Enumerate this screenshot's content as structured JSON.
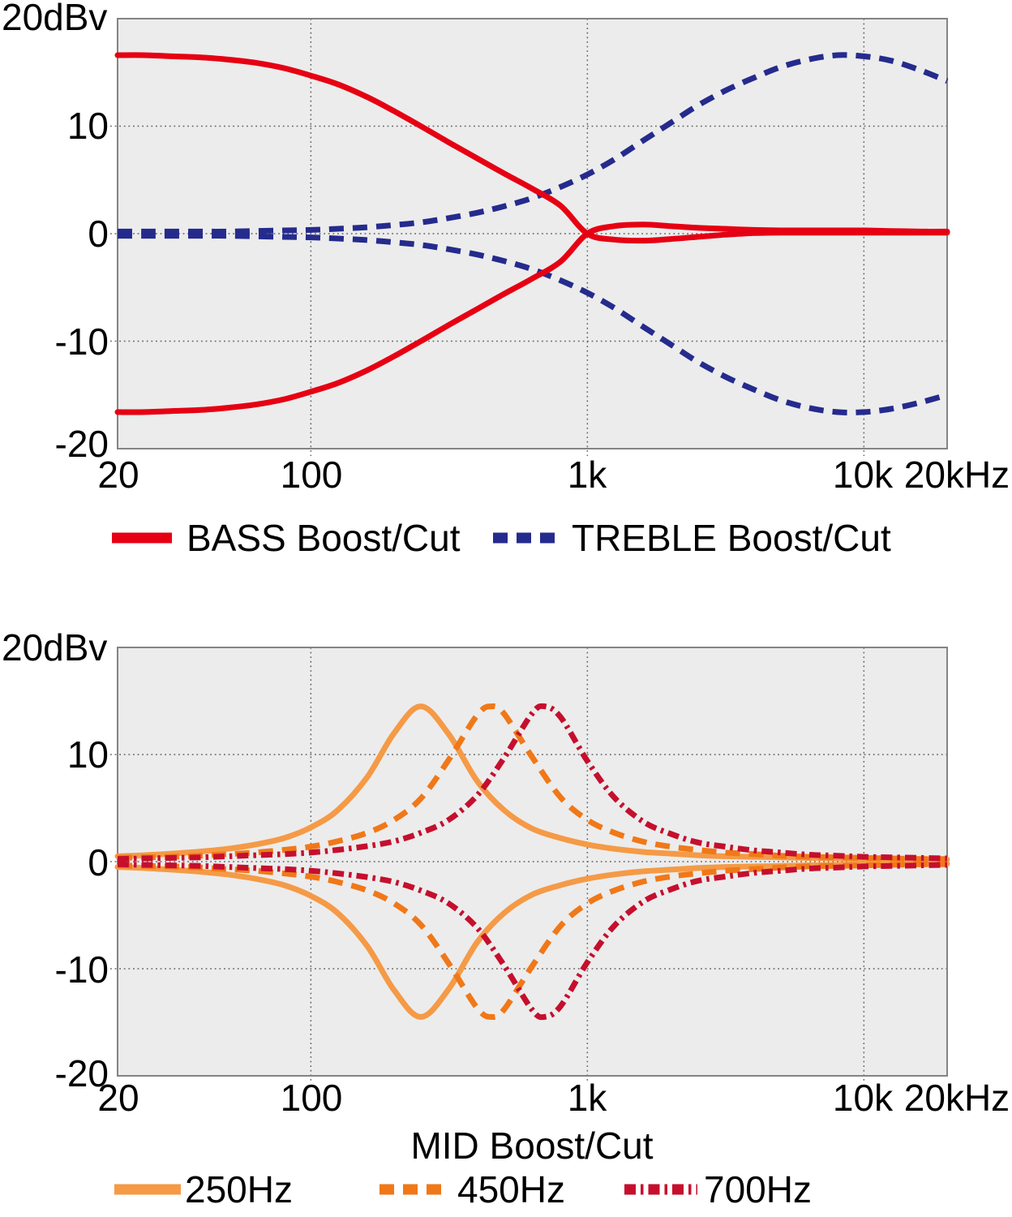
{
  "colors": {
    "page_bg": "#ffffff",
    "plot_bg": "#ececec",
    "grid": "#636363",
    "axis": "#848484",
    "text": "#000000",
    "bass_red": "#e60013",
    "treble_blue": "#252b8d",
    "mid250_orange": "#f59a46",
    "mid450_orange": "#f07818",
    "mid700_crimson": "#c50f2d"
  },
  "chart_data": [
    {
      "type": "line",
      "title": "",
      "unit_label": "20dBv",
      "xlabel": "",
      "ylabel": "",
      "x_scale": "log",
      "x_range": [
        20,
        20000
      ],
      "y_range": [
        -20,
        20
      ],
      "grid": {
        "x_values": [
          100,
          1000,
          10000
        ],
        "y_values": [
          10,
          0,
          -10
        ]
      },
      "x_ticks": [
        {
          "value": 20,
          "label": "20"
        },
        {
          "value": 100,
          "label": "100"
        },
        {
          "value": 1000,
          "label": "1k"
        },
        {
          "value": 10000,
          "label": "10k"
        },
        {
          "value": 20000,
          "label": "20kHz"
        }
      ],
      "y_ticks": [
        {
          "value": 10,
          "label": "10"
        },
        {
          "value": 0,
          "label": "0"
        },
        {
          "value": -10,
          "label": "-10"
        },
        {
          "value": -20,
          "label": "-20"
        }
      ],
      "legend_position": "bottom",
      "legend": [
        {
          "label": "BASS Boost/Cut",
          "color": "#e60013",
          "line_style": "solid"
        },
        {
          "label": "TREBLE Boost/Cut",
          "color": "#252b8d",
          "line_style": "dashed"
        }
      ],
      "series": [
        {
          "id": "treble-cut",
          "name": "TREBLE Cut",
          "color": "#252b8d",
          "line_style": "dashed",
          "x": [
            20,
            25,
            31.5,
            40,
            50,
            63,
            80,
            100,
            125,
            160,
            200,
            250,
            315,
            400,
            500,
            630,
            800,
            1000,
            1250,
            1600,
            2000,
            2500,
            3150,
            4000,
            5000,
            6300,
            8000,
            10000,
            12500,
            16000,
            20000
          ],
          "y": [
            -0.2,
            -0.2,
            -0.2,
            -0.2,
            -0.2,
            -0.25,
            -0.3,
            -0.35,
            -0.45,
            -0.6,
            -0.8,
            -1.05,
            -1.45,
            -1.95,
            -2.55,
            -3.3,
            -4.35,
            -5.5,
            -6.9,
            -8.7,
            -10.3,
            -11.9,
            -13.3,
            -14.5,
            -15.5,
            -16.2,
            -16.6,
            -16.6,
            -16.3,
            -15.7,
            -15.0
          ]
        },
        {
          "id": "treble-boost",
          "name": "TREBLE Boost",
          "color": "#252b8d",
          "line_style": "dashed",
          "x": [
            20,
            25,
            31.5,
            40,
            50,
            63,
            80,
            100,
            125,
            160,
            200,
            250,
            315,
            400,
            500,
            630,
            800,
            1000,
            1250,
            1600,
            2000,
            2500,
            3150,
            4000,
            5000,
            6300,
            8000,
            10000,
            12500,
            16000,
            20000
          ],
          "y": [
            0.2,
            0.2,
            0.2,
            0.2,
            0.2,
            0.25,
            0.3,
            0.35,
            0.45,
            0.6,
            0.8,
            1.05,
            1.45,
            1.95,
            2.55,
            3.3,
            4.35,
            5.5,
            6.9,
            8.7,
            10.3,
            11.9,
            13.3,
            14.5,
            15.5,
            16.2,
            16.6,
            16.5,
            16.1,
            15.2,
            14.2
          ]
        },
        {
          "id": "bass-cut",
          "name": "BASS Cut",
          "color": "#e60013",
          "line_style": "solid",
          "x": [
            20,
            25,
            31.5,
            40,
            50,
            63,
            80,
            100,
            125,
            160,
            200,
            250,
            315,
            400,
            500,
            630,
            800,
            1000,
            1250,
            1600,
            2000,
            2500,
            3150,
            4000,
            5000,
            6300,
            8000,
            10000,
            12500,
            16000,
            20000
          ],
          "y": [
            -16.6,
            -16.6,
            -16.5,
            -16.4,
            -16.2,
            -15.9,
            -15.4,
            -14.7,
            -13.9,
            -12.7,
            -11.4,
            -10.0,
            -8.5,
            -7.0,
            -5.6,
            -4.2,
            -2.6,
            0.0,
            0.7,
            0.85,
            0.7,
            0.55,
            0.45,
            0.35,
            0.3,
            0.3,
            0.3,
            0.3,
            0.25,
            0.2,
            0.2
          ]
        },
        {
          "id": "bass-boost",
          "name": "BASS Boost",
          "color": "#e60013",
          "line_style": "solid",
          "x": [
            20,
            25,
            31.5,
            40,
            50,
            63,
            80,
            100,
            125,
            160,
            200,
            250,
            315,
            400,
            500,
            630,
            800,
            1000,
            1250,
            1600,
            2000,
            2500,
            3150,
            4000,
            5000,
            6300,
            8000,
            10000,
            12500,
            16000,
            20000
          ],
          "y": [
            16.6,
            16.6,
            16.5,
            16.4,
            16.2,
            15.9,
            15.4,
            14.7,
            13.9,
            12.7,
            11.4,
            10.0,
            8.5,
            7.0,
            5.6,
            4.2,
            2.6,
            0.0,
            -0.55,
            -0.65,
            -0.5,
            -0.3,
            -0.1,
            0.05,
            0.1,
            0.1,
            0.1,
            0.1,
            0.1,
            0.1,
            0.1
          ]
        }
      ]
    },
    {
      "type": "line",
      "title": "",
      "unit_label": "20dBv",
      "xlabel": "MID Boost/Cut",
      "ylabel": "",
      "x_scale": "log",
      "x_range": [
        20,
        20000
      ],
      "y_range": [
        -20,
        20
      ],
      "grid": {
        "x_values": [
          100,
          1000,
          10000
        ],
        "y_values": [
          10,
          0,
          -10
        ]
      },
      "x_ticks": [
        {
          "value": 20,
          "label": "20"
        },
        {
          "value": 100,
          "label": "100"
        },
        {
          "value": 1000,
          "label": "1k"
        },
        {
          "value": 10000,
          "label": "10k"
        },
        {
          "value": 20000,
          "label": "20kHz"
        }
      ],
      "y_ticks": [
        {
          "value": 10,
          "label": "10"
        },
        {
          "value": 0,
          "label": "0"
        },
        {
          "value": -10,
          "label": "-10"
        },
        {
          "value": -20,
          "label": "-20"
        }
      ],
      "legend_position": "bottom",
      "legend": [
        {
          "label": "250Hz",
          "color": "#f59a46",
          "line_style": "solid"
        },
        {
          "label": "450Hz",
          "color": "#f07818",
          "line_style": "dashed"
        },
        {
          "label": "700Hz",
          "color": "#c50f2d",
          "line_style": "dash-dot"
        }
      ],
      "series": [
        {
          "id": "mid-250-cut",
          "name": "250Hz Cut",
          "color": "#f59a46",
          "line_style": "solid",
          "x": [
            20,
            25,
            31.5,
            40,
            50,
            63,
            80,
            100,
            125,
            160,
            200,
            250,
            315,
            400,
            500,
            630,
            800,
            1000,
            1250,
            1600,
            2000,
            2500,
            3150,
            4000,
            5000,
            6300,
            8000,
            10000,
            12500,
            16000,
            20000
          ],
          "y": [
            -0.5,
            -0.6,
            -0.75,
            -0.95,
            -1.2,
            -1.6,
            -2.2,
            -3.2,
            -4.8,
            -7.9,
            -12.0,
            -14.5,
            -11.9,
            -7.5,
            -4.8,
            -3.1,
            -2.2,
            -1.6,
            -1.2,
            -0.9,
            -0.75,
            -0.6,
            -0.5,
            -0.45,
            -0.4,
            -0.35,
            -0.3,
            -0.25,
            -0.2,
            -0.2,
            -0.2
          ]
        },
        {
          "id": "mid-250-boost",
          "name": "250Hz Boost",
          "color": "#f59a46",
          "line_style": "solid",
          "x": [
            20,
            25,
            31.5,
            40,
            50,
            63,
            80,
            100,
            125,
            160,
            200,
            250,
            315,
            400,
            500,
            630,
            800,
            1000,
            1250,
            1600,
            2000,
            2500,
            3150,
            4000,
            5000,
            6300,
            8000,
            10000,
            12500,
            16000,
            20000
          ],
          "y": [
            0.5,
            0.6,
            0.75,
            0.95,
            1.2,
            1.6,
            2.2,
            3.2,
            4.8,
            7.9,
            12.0,
            14.5,
            11.9,
            7.5,
            4.8,
            3.1,
            2.2,
            1.6,
            1.2,
            0.9,
            0.75,
            0.6,
            0.5,
            0.45,
            0.4,
            0.35,
            0.3,
            0.25,
            0.2,
            0.2,
            0.2
          ]
        },
        {
          "id": "mid-450-cut",
          "name": "450Hz Cut",
          "color": "#f07818",
          "line_style": "dashed",
          "x": [
            20,
            25,
            31.5,
            40,
            50,
            63,
            80,
            100,
            125,
            160,
            200,
            250,
            315,
            400,
            450,
            500,
            630,
            800,
            1000,
            1250,
            1600,
            2000,
            2500,
            3150,
            4000,
            5000,
            6300,
            8000,
            10000,
            12500,
            16000,
            20000
          ],
          "y": [
            -0.35,
            -0.4,
            -0.45,
            -0.55,
            -0.7,
            -0.85,
            -1.1,
            -1.4,
            -1.9,
            -2.7,
            -3.9,
            -5.9,
            -9.5,
            -13.7,
            -14.5,
            -13.8,
            -9.8,
            -6.0,
            -3.9,
            -2.7,
            -1.85,
            -1.4,
            -1.1,
            -0.85,
            -0.7,
            -0.55,
            -0.45,
            -0.4,
            -0.35,
            -0.3,
            -0.25,
            -0.25
          ]
        },
        {
          "id": "mid-450-boost",
          "name": "450Hz Boost",
          "color": "#f07818",
          "line_style": "dashed",
          "x": [
            20,
            25,
            31.5,
            40,
            50,
            63,
            80,
            100,
            125,
            160,
            200,
            250,
            315,
            400,
            450,
            500,
            630,
            800,
            1000,
            1250,
            1600,
            2000,
            2500,
            3150,
            4000,
            5000,
            6300,
            8000,
            10000,
            12500,
            16000,
            20000
          ],
          "y": [
            0.35,
            0.4,
            0.45,
            0.55,
            0.7,
            0.85,
            1.1,
            1.4,
            1.9,
            2.7,
            3.9,
            5.9,
            9.5,
            13.7,
            14.5,
            13.8,
            9.8,
            6.0,
            3.9,
            2.7,
            1.85,
            1.4,
            1.1,
            0.85,
            0.7,
            0.55,
            0.45,
            0.4,
            0.35,
            0.3,
            0.25,
            0.25
          ]
        },
        {
          "id": "mid-700-cut",
          "name": "700Hz Cut",
          "color": "#c50f2d",
          "line_style": "dash-dot",
          "x": [
            20,
            25,
            31.5,
            40,
            50,
            63,
            80,
            100,
            125,
            160,
            200,
            250,
            315,
            400,
            500,
            630,
            700,
            800,
            1000,
            1250,
            1600,
            2000,
            2500,
            3150,
            4000,
            5000,
            6300,
            8000,
            10000,
            12500,
            16000,
            20000
          ],
          "y": [
            -0.25,
            -0.3,
            -0.35,
            -0.4,
            -0.5,
            -0.6,
            -0.7,
            -0.85,
            -1.1,
            -1.45,
            -1.9,
            -2.7,
            -3.9,
            -6.2,
            -9.7,
            -13.8,
            -14.5,
            -13.5,
            -9.4,
            -6.0,
            -3.7,
            -2.6,
            -1.8,
            -1.4,
            -1.05,
            -0.85,
            -0.65,
            -0.55,
            -0.45,
            -0.4,
            -0.35,
            -0.3
          ]
        },
        {
          "id": "mid-700-boost",
          "name": "700Hz Boost",
          "color": "#c50f2d",
          "line_style": "dash-dot",
          "x": [
            20,
            25,
            31.5,
            40,
            50,
            63,
            80,
            100,
            125,
            160,
            200,
            250,
            315,
            400,
            500,
            630,
            700,
            800,
            1000,
            1250,
            1600,
            2000,
            2500,
            3150,
            4000,
            5000,
            6300,
            8000,
            10000,
            12500,
            16000,
            20000
          ],
          "y": [
            0.25,
            0.3,
            0.35,
            0.4,
            0.5,
            0.6,
            0.7,
            0.85,
            1.1,
            1.45,
            1.9,
            2.7,
            3.9,
            6.2,
            9.7,
            13.8,
            14.5,
            13.5,
            9.4,
            6.0,
            3.7,
            2.6,
            1.8,
            1.4,
            1.05,
            0.85,
            0.65,
            0.55,
            0.45,
            0.4,
            0.35,
            0.3
          ]
        }
      ]
    }
  ]
}
